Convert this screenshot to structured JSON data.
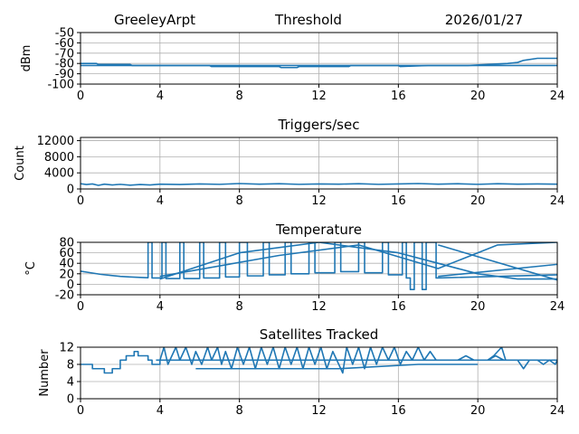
{
  "header": {
    "station": "GreeleyArpt",
    "first_panel_title": "Threshold",
    "date": "2026/01/27"
  },
  "colors": {
    "series": "#1f77b4",
    "grid": "#b0b0b0",
    "axes": "#000000"
  },
  "chart_data": [
    {
      "type": "line",
      "title": "Threshold",
      "xlabel": "",
      "ylabel": "dBm",
      "xlim": [
        0,
        24
      ],
      "ylim": [
        -100,
        -50
      ],
      "xticks": [
        0,
        4,
        8,
        12,
        16,
        20,
        24
      ],
      "yticks": [
        -100,
        -90,
        -80,
        -70,
        -60,
        -50
      ],
      "grid": true,
      "series": [
        {
          "values": [
            [
              0,
              -80
            ],
            [
              0.8,
              -80
            ],
            [
              0.9,
              -81
            ],
            [
              2.5,
              -81
            ],
            [
              2.6,
              -82
            ],
            [
              6.5,
              -82
            ],
            [
              6.6,
              -83
            ],
            [
              10,
              -83
            ],
            [
              10.1,
              -84
            ],
            [
              10.9,
              -84
            ],
            [
              11,
              -83
            ],
            [
              13.5,
              -83
            ],
            [
              13.6,
              -82
            ],
            [
              16,
              -82
            ],
            [
              16.1,
              -83
            ],
            [
              17.5,
              -82
            ],
            [
              19.5,
              -82
            ],
            [
              20.5,
              -81
            ],
            [
              21.5,
              -80
            ],
            [
              22,
              -79
            ],
            [
              22.3,
              -77
            ],
            [
              23,
              -75
            ],
            [
              24,
              -75
            ]
          ]
        },
        {
          "values": [
            [
              0,
              -82
            ],
            [
              4,
              -82
            ],
            [
              8,
              -82
            ],
            [
              12,
              -82
            ],
            [
              16,
              -82
            ],
            [
              20,
              -82
            ],
            [
              24,
              -82
            ]
          ]
        }
      ]
    },
    {
      "type": "line",
      "title": "Triggers/sec",
      "xlabel": "",
      "ylabel": "Count",
      "xlim": [
        0,
        24
      ],
      "ylim": [
        0,
        12800
      ],
      "xticks": [
        0,
        4,
        8,
        12,
        16,
        20,
        24
      ],
      "yticks": [
        0,
        4000,
        8000,
        12000
      ],
      "grid": true,
      "series": [
        {
          "values": [
            [
              0,
              1300
            ],
            [
              0.3,
              1100
            ],
            [
              0.6,
              1250
            ],
            [
              0.9,
              900
            ],
            [
              1.2,
              1200
            ],
            [
              1.6,
              1000
            ],
            [
              2.0,
              1150
            ],
            [
              2.5,
              950
            ],
            [
              3.0,
              1100
            ],
            [
              3.5,
              1000
            ],
            [
              4.0,
              1200
            ],
            [
              5.0,
              1100
            ],
            [
              6.0,
              1250
            ],
            [
              7.0,
              1150
            ],
            [
              8.0,
              1350
            ],
            [
              9.0,
              1200
            ],
            [
              10.0,
              1300
            ],
            [
              11.0,
              1150
            ],
            [
              12.0,
              1250
            ],
            [
              13.0,
              1200
            ],
            [
              14.0,
              1300
            ],
            [
              15.0,
              1150
            ],
            [
              16.0,
              1250
            ],
            [
              17.0,
              1350
            ],
            [
              18.0,
              1200
            ],
            [
              19.0,
              1300
            ],
            [
              20.0,
              1150
            ],
            [
              21.0,
              1300
            ],
            [
              22.0,
              1200
            ],
            [
              23.0,
              1250
            ],
            [
              24.0,
              1200
            ]
          ]
        }
      ]
    },
    {
      "type": "line",
      "title": "Temperature",
      "xlabel": "",
      "ylabel": "°C",
      "xlim": [
        0,
        24
      ],
      "ylim": [
        -20,
        80
      ],
      "xticks": [
        0,
        4,
        8,
        12,
        16,
        20,
        24
      ],
      "yticks": [
        -20,
        0,
        20,
        40,
        60,
        80
      ],
      "grid": true,
      "series": [
        {
          "values": [
            [
              0,
              25
            ],
            [
              0.5,
              22
            ],
            [
              1,
              19
            ],
            [
              1.5,
              17
            ],
            [
              2,
              15
            ],
            [
              2.5,
              14
            ],
            [
              3,
              13
            ],
            [
              3.4,
              12.5
            ],
            [
              3.4,
              80
            ],
            [
              3.6,
              80
            ],
            [
              3.6,
              12
            ],
            [
              4.1,
              12
            ],
            [
              4.1,
              80
            ],
            [
              4.3,
              80
            ],
            [
              4.3,
              11
            ],
            [
              5,
              11
            ],
            [
              5,
              80
            ],
            [
              5.2,
              80
            ],
            [
              5.2,
              11
            ],
            [
              6,
              11
            ],
            [
              6,
              80
            ],
            [
              6.2,
              80
            ],
            [
              6.2,
              12
            ],
            [
              7,
              12
            ],
            [
              7,
              80
            ],
            [
              7.3,
              80
            ],
            [
              7.3,
              14
            ],
            [
              8,
              14
            ],
            [
              8,
              80
            ],
            [
              8.4,
              80
            ],
            [
              8.4,
              16
            ],
            [
              9.2,
              16
            ],
            [
              9.2,
              80
            ],
            [
              9.5,
              80
            ],
            [
              9.5,
              18
            ],
            [
              10.3,
              18
            ],
            [
              10.3,
              80
            ],
            [
              10.6,
              80
            ],
            [
              10.6,
              20
            ],
            [
              11.5,
              20
            ],
            [
              11.5,
              80
            ],
            [
              11.8,
              80
            ],
            [
              11.8,
              22
            ],
            [
              12.8,
              22
            ],
            [
              12.8,
              80
            ],
            [
              13.1,
              80
            ],
            [
              13.1,
              24
            ],
            [
              14,
              24
            ],
            [
              14,
              80
            ],
            [
              14.3,
              80
            ],
            [
              14.3,
              22
            ],
            [
              15.2,
              22
            ],
            [
              15.2,
              80
            ],
            [
              15.5,
              80
            ],
            [
              15.5,
              18
            ],
            [
              16.2,
              18
            ],
            [
              16.2,
              80
            ],
            [
              16.4,
              80
            ],
            [
              16.4,
              12
            ],
            [
              16.6,
              12
            ],
            [
              16.6,
              -10
            ],
            [
              16.8,
              -10
            ],
            [
              16.8,
              80
            ],
            [
              17.2,
              80
            ],
            [
              17.2,
              -10
            ],
            [
              17.4,
              -10
            ],
            [
              17.4,
              80
            ],
            [
              17.9,
              80
            ],
            [
              17.9,
              12
            ],
            [
              24,
              18
            ]
          ]
        },
        {
          "values": [
            [
              4,
              10
            ],
            [
              8,
              60
            ],
            [
              12,
              80
            ],
            [
              16,
              60
            ],
            [
              18,
              40
            ],
            [
              20,
              20
            ],
            [
              22,
              10
            ],
            [
              24,
              10
            ]
          ]
        },
        {
          "values": [
            [
              4,
              15
            ],
            [
              10,
              55
            ],
            [
              14,
              75
            ],
            [
              18,
              30
            ],
            [
              21,
              75
            ],
            [
              24,
              80
            ]
          ]
        },
        {
          "values": [
            [
              18,
              75
            ],
            [
              24,
              8
            ]
          ]
        },
        {
          "values": [
            [
              18,
              15
            ],
            [
              24,
              38
            ]
          ]
        }
      ]
    },
    {
      "type": "line",
      "title": "Satellites Tracked",
      "xlabel": "",
      "ylabel": "Number",
      "xlim": [
        0,
        24
      ],
      "ylim": [
        0,
        12
      ],
      "xticks": [
        0,
        4,
        8,
        12,
        16,
        20,
        24
      ],
      "yticks": [
        0,
        4,
        8,
        12
      ],
      "grid": true,
      "series": [
        {
          "values": [
            [
              0,
              8
            ],
            [
              0.6,
              8
            ],
            [
              0.6,
              7
            ],
            [
              1.2,
              7
            ],
            [
              1.2,
              6
            ],
            [
              1.6,
              6
            ],
            [
              1.6,
              7
            ],
            [
              2.0,
              7
            ],
            [
              2.0,
              9
            ],
            [
              2.3,
              9
            ],
            [
              2.3,
              10
            ],
            [
              2.7,
              10
            ],
            [
              2.7,
              11
            ],
            [
              2.9,
              11
            ],
            [
              2.9,
              10
            ],
            [
              3.4,
              10
            ],
            [
              3.4,
              9
            ],
            [
              3.6,
              9
            ],
            [
              3.6,
              8
            ],
            [
              4.0,
              8
            ],
            [
              4.0,
              9
            ],
            [
              4.2,
              12
            ],
            [
              4.4,
              8
            ],
            [
              4.8,
              12
            ],
            [
              5.0,
              9
            ],
            [
              5.3,
              12
            ],
            [
              5.6,
              8
            ],
            [
              5.8,
              11
            ],
            [
              6.1,
              8
            ],
            [
              6.4,
              12
            ],
            [
              6.6,
              9
            ],
            [
              6.9,
              12
            ],
            [
              7.1,
              8
            ],
            [
              7.3,
              11
            ],
            [
              7.6,
              7
            ],
            [
              7.9,
              12
            ],
            [
              8.2,
              8
            ],
            [
              8.5,
              12
            ],
            [
              8.8,
              7
            ],
            [
              9.1,
              12
            ],
            [
              9.4,
              8
            ],
            [
              9.7,
              12
            ],
            [
              10.0,
              7
            ],
            [
              10.3,
              12
            ],
            [
              10.6,
              8
            ],
            [
              10.9,
              12
            ],
            [
              11.2,
              7
            ],
            [
              11.5,
              12
            ],
            [
              11.8,
              8
            ],
            [
              12.1,
              12
            ],
            [
              12.4,
              7
            ],
            [
              12.7,
              11
            ],
            [
              13.0,
              8
            ],
            [
              13.2,
              6
            ],
            [
              13.4,
              12
            ],
            [
              13.7,
              8
            ],
            [
              14.0,
              12
            ],
            [
              14.3,
              7
            ],
            [
              14.6,
              12
            ],
            [
              14.9,
              8
            ],
            [
              15.2,
              12
            ],
            [
              15.5,
              9
            ],
            [
              15.8,
              12
            ],
            [
              16.1,
              8
            ],
            [
              16.4,
              11
            ],
            [
              16.7,
              9
            ],
            [
              17.0,
              12
            ],
            [
              17.3,
              9
            ],
            [
              17.6,
              11
            ],
            [
              17.9,
              9
            ],
            [
              18.2,
              9
            ],
            [
              19.0,
              9
            ],
            [
              19.4,
              10
            ],
            [
              19.8,
              9
            ],
            [
              20.5,
              9
            ],
            [
              20.8,
              10
            ],
            [
              21.0,
              11
            ],
            [
              21.2,
              12
            ],
            [
              21.4,
              9
            ],
            [
              22.0,
              9
            ],
            [
              22.5,
              9
            ],
            [
              24.0,
              9
            ]
          ]
        },
        {
          "values": [
            [
              5.8,
              7
            ],
            [
              13.0,
              7
            ],
            [
              17.0,
              8
            ],
            [
              20.0,
              8
            ]
          ]
        },
        {
          "values": [
            [
              3.8,
              9
            ],
            [
              24.0,
              9
            ]
          ]
        },
        {
          "values": [
            [
              20.5,
              9
            ],
            [
              20.9,
              10
            ],
            [
              21.3,
              9
            ],
            [
              22.0,
              9
            ],
            [
              22.3,
              7
            ],
            [
              22.6,
              9
            ],
            [
              24.0,
              9
            ]
          ]
        },
        {
          "values": [
            [
              23.0,
              9
            ],
            [
              23.3,
              8
            ],
            [
              23.6,
              9
            ],
            [
              23.9,
              8
            ],
            [
              24.0,
              9
            ]
          ]
        }
      ]
    }
  ]
}
